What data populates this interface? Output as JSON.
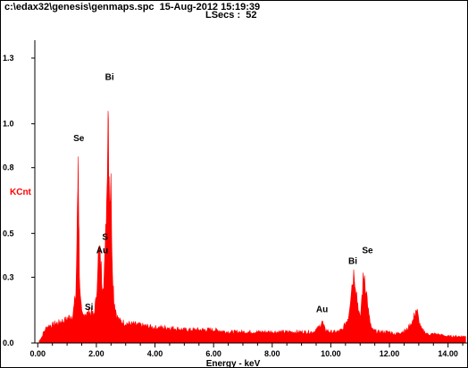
{
  "header": {
    "title": "c:\\edax32\\genesis\\genmaps.spc  15-Aug-2012 15:19:39",
    "lsecs": "LSecs :  52"
  },
  "colors": {
    "spectrum": "#ff0000",
    "y_axis_title": "#ff0000",
    "axes": "#000000",
    "background": "#ffffff"
  },
  "chart_data": {
    "type": "area",
    "xlabel": "Energy - keV",
    "ylabel": "KCnt",
    "xlim": [
      -0.1,
      14.65
    ],
    "ylim": [
      0,
      1.3
    ],
    "grid": false,
    "x_ticks": [
      0.0,
      2.0,
      4.0,
      6.0,
      8.0,
      10.0,
      12.0,
      14.0
    ],
    "x_tick_labels": [
      "0.00",
      "2.00",
      "4.00",
      "6.00",
      "8.00",
      "10.00",
      "12.00",
      "14.00"
    ],
    "y_ticks": [
      0.0,
      0.3,
      0.5,
      0.8,
      1.0,
      1.3
    ],
    "y_tick_labels": [
      "0.0",
      "0.3",
      "0.5",
      "0.8",
      "1.0",
      "1.3"
    ],
    "series": [
      {
        "x": [
          0.05,
          0.1,
          0.15,
          0.2,
          0.25,
          0.3,
          0.4,
          0.5,
          0.6,
          0.7,
          0.8,
          0.9,
          1.0,
          1.1,
          1.2,
          1.3,
          1.35,
          1.38,
          1.4,
          1.42,
          1.45,
          1.5,
          1.55,
          1.6,
          1.7,
          1.75,
          1.8,
          1.85,
          1.9,
          2.0,
          2.05,
          2.1,
          2.15,
          2.2,
          2.25,
          2.3,
          2.35,
          2.4,
          2.42,
          2.45,
          2.5,
          2.55,
          2.6,
          2.7,
          2.8,
          3.0,
          3.5,
          4.0,
          4.5,
          5.0,
          5.5,
          6.0,
          6.5,
          7.0,
          7.5,
          8.0,
          8.5,
          9.0,
          9.4,
          9.6,
          9.7,
          9.8,
          10.0,
          10.2,
          10.4,
          10.6,
          10.7,
          10.8,
          10.9,
          11.0,
          11.1,
          11.15,
          11.2,
          11.3,
          11.4,
          11.6,
          11.8,
          12.0,
          12.2,
          12.4,
          12.6,
          12.8,
          12.9,
          12.95,
          13.0,
          13.1,
          13.3,
          13.6,
          14.0,
          14.3,
          14.6
        ],
        "y": [
          0.01,
          0.02,
          0.03,
          0.05,
          0.06,
          0.07,
          0.08,
          0.08,
          0.09,
          0.09,
          0.1,
          0.1,
          0.11,
          0.12,
          0.13,
          0.22,
          0.55,
          0.87,
          0.6,
          0.35,
          0.2,
          0.13,
          0.12,
          0.14,
          0.13,
          0.15,
          0.13,
          0.14,
          0.12,
          0.2,
          0.38,
          0.42,
          0.36,
          0.28,
          0.3,
          0.4,
          0.65,
          1.15,
          0.9,
          0.7,
          0.7,
          0.35,
          0.2,
          0.12,
          0.1,
          0.09,
          0.08,
          0.07,
          0.07,
          0.06,
          0.06,
          0.06,
          0.05,
          0.05,
          0.05,
          0.05,
          0.05,
          0.05,
          0.05,
          0.07,
          0.1,
          0.06,
          0.05,
          0.05,
          0.06,
          0.12,
          0.25,
          0.33,
          0.2,
          0.1,
          0.28,
          0.31,
          0.25,
          0.12,
          0.06,
          0.05,
          0.05,
          0.05,
          0.04,
          0.05,
          0.06,
          0.1,
          0.15,
          0.14,
          0.1,
          0.06,
          0.04,
          0.04,
          0.03,
          0.03,
          0.03
        ]
      }
    ],
    "annotations": [
      {
        "text": "Se",
        "x": 1.4,
        "y": 0.92
      },
      {
        "text": "Bi",
        "x": 2.45,
        "y": 1.2
      },
      {
        "text": "S",
        "x": 2.3,
        "y": 0.47
      },
      {
        "text": "Au",
        "x": 2.2,
        "y": 0.41
      },
      {
        "text": "Si",
        "x": 1.75,
        "y": 0.15
      },
      {
        "text": "Au",
        "x": 9.7,
        "y": 0.14
      },
      {
        "text": "Bi",
        "x": 10.75,
        "y": 0.36
      },
      {
        "text": "Se",
        "x": 11.25,
        "y": 0.41
      }
    ]
  }
}
